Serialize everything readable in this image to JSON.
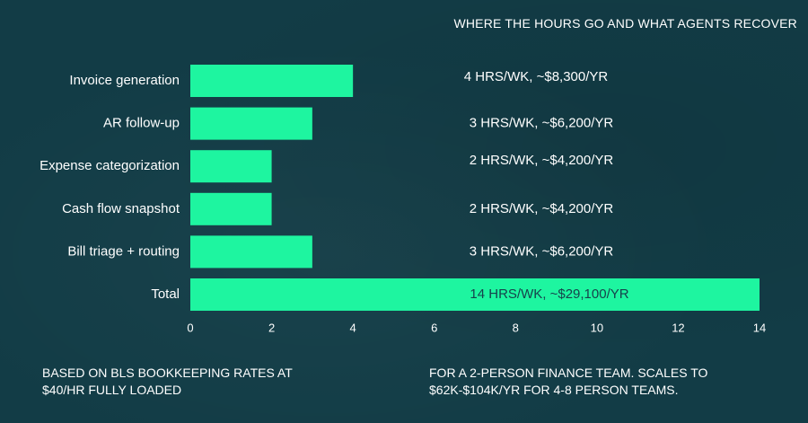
{
  "colors": {
    "background": "#123c46",
    "bar": "#1ef5a0",
    "text": "#ffffff"
  },
  "chart_data": {
    "type": "bar",
    "orientation": "horizontal",
    "title": "WHERE THE HOURS GO AND WHAT AGENTS RECOVER",
    "xlabel": "",
    "ylabel": "",
    "categories": [
      "Invoice generation",
      "AR follow-up",
      "Expense categorization",
      "Cash flow snapshot",
      "Bill triage + routing",
      "Total"
    ],
    "values": [
      4,
      3,
      2,
      2,
      3,
      14
    ],
    "value_labels": [
      "4 HRS/WK, ~$8,300/YR",
      "3 HRS/WK, ~$6,200/YR",
      "2 HRS/WK, ~$4,200/YR",
      "2 HRS/WK, ~$4,200/YR",
      "3 HRS/WK, ~$6,200/YR",
      "14 HRS/WK, ~$29,100/YR"
    ],
    "xlim": [
      0,
      14
    ],
    "xticks": [
      "0",
      "2",
      "4",
      "6",
      "8",
      "10",
      "12",
      "14"
    ],
    "grid": false,
    "legend": "none"
  },
  "notes": {
    "left": "BASED ON BLS BOOKKEEPING RATES AT $40/HR FULLY LOADED",
    "right": "FOR A 2-PERSON FINANCE TEAM. SCALES TO $62K-$104K/YR FOR 4-8 PERSON TEAMS."
  }
}
